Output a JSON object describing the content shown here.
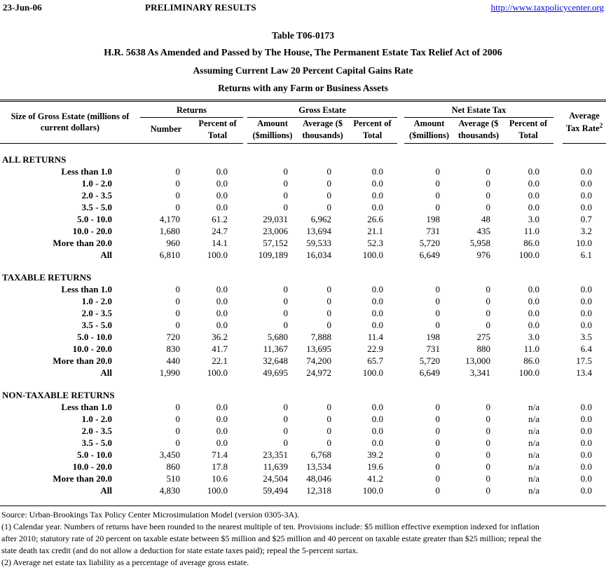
{
  "page_header": {
    "date": "23-Jun-06",
    "status": "PRELIMINARY RESULTS",
    "link": "http://www.taxpolicycenter.org"
  },
  "title": {
    "table_number": "Table T06-0173",
    "line2": "H.R. 5638 As Amended and Passed by The House, The Permanent Estate Tax Relief Act of 2006",
    "line3": "Assuming Current Law 20 Percent Capital Gains Rate",
    "line4": "Returns with any Farm or Business Assets"
  },
  "table": {
    "row_label_header": "Size of Gross Estate (millions of current dollars)",
    "groups": [
      {
        "label": "Returns",
        "cols": [
          "Number",
          "Percent of Total"
        ]
      },
      {
        "label": "Gross Estate",
        "cols": [
          "Amount ($millions)",
          "Average ($ thousands)",
          "Percent of Total"
        ]
      },
      {
        "label": "Net Estate Tax",
        "cols": [
          "Amount ($millions)",
          "Average ($ thousands)",
          "Percent of Total"
        ]
      }
    ],
    "avg_tax_rate": {
      "line1": "Average",
      "line2": "Tax Rate",
      "sup": "2"
    },
    "sections": [
      {
        "name": "ALL RETURNS",
        "rows": [
          {
            "label": "Less than 1.0",
            "values": [
              "0",
              "0.0",
              "0",
              "0",
              "0.0",
              "0",
              "0",
              "0.0",
              "0.0"
            ]
          },
          {
            "label": "1.0 - 2.0",
            "values": [
              "0",
              "0.0",
              "0",
              "0",
              "0.0",
              "0",
              "0",
              "0.0",
              "0.0"
            ]
          },
          {
            "label": "2.0 - 3.5",
            "values": [
              "0",
              "0.0",
              "0",
              "0",
              "0.0",
              "0",
              "0",
              "0.0",
              "0.0"
            ]
          },
          {
            "label": "3.5 - 5.0",
            "values": [
              "0",
              "0.0",
              "0",
              "0",
              "0.0",
              "0",
              "0",
              "0.0",
              "0.0"
            ]
          },
          {
            "label": "5.0 - 10.0",
            "values": [
              "4,170",
              "61.2",
              "29,031",
              "6,962",
              "26.6",
              "198",
              "48",
              "3.0",
              "0.7"
            ]
          },
          {
            "label": "10.0 - 20.0",
            "values": [
              "1,680",
              "24.7",
              "23,006",
              "13,694",
              "21.1",
              "731",
              "435",
              "11.0",
              "3.2"
            ]
          },
          {
            "label": "More than 20.0",
            "values": [
              "960",
              "14.1",
              "57,152",
              "59,533",
              "52.3",
              "5,720",
              "5,958",
              "86.0",
              "10.0"
            ]
          },
          {
            "label": "All",
            "values": [
              "6,810",
              "100.0",
              "109,189",
              "16,034",
              "100.0",
              "6,649",
              "976",
              "100.0",
              "6.1"
            ]
          }
        ]
      },
      {
        "name": "TAXABLE RETURNS",
        "rows": [
          {
            "label": "Less than 1.0",
            "values": [
              "0",
              "0.0",
              "0",
              "0",
              "0.0",
              "0",
              "0",
              "0.0",
              "0.0"
            ]
          },
          {
            "label": "1.0 - 2.0",
            "values": [
              "0",
              "0.0",
              "0",
              "0",
              "0.0",
              "0",
              "0",
              "0.0",
              "0.0"
            ]
          },
          {
            "label": "2.0 - 3.5",
            "values": [
              "0",
              "0.0",
              "0",
              "0",
              "0.0",
              "0",
              "0",
              "0.0",
              "0.0"
            ]
          },
          {
            "label": "3.5 - 5.0",
            "values": [
              "0",
              "0.0",
              "0",
              "0",
              "0.0",
              "0",
              "0",
              "0.0",
              "0.0"
            ]
          },
          {
            "label": "5.0 - 10.0",
            "values": [
              "720",
              "36.2",
              "5,680",
              "7,888",
              "11.4",
              "198",
              "275",
              "3.0",
              "3.5"
            ]
          },
          {
            "label": "10.0 - 20.0",
            "values": [
              "830",
              "41.7",
              "11,367",
              "13,695",
              "22.9",
              "731",
              "880",
              "11.0",
              "6.4"
            ]
          },
          {
            "label": "More than 20.0",
            "values": [
              "440",
              "22.1",
              "32,648",
              "74,200",
              "65.7",
              "5,720",
              "13,000",
              "86.0",
              "17.5"
            ]
          },
          {
            "label": "All",
            "values": [
              "1,990",
              "100.0",
              "49,695",
              "24,972",
              "100.0",
              "6,649",
              "3,341",
              "100.0",
              "13.4"
            ]
          }
        ]
      },
      {
        "name": "NON-TAXABLE RETURNS",
        "rows": [
          {
            "label": "Less than 1.0",
            "values": [
              "0",
              "0.0",
              "0",
              "0",
              "0.0",
              "0",
              "0",
              "n/a",
              "0.0"
            ]
          },
          {
            "label": "1.0 - 2.0",
            "values": [
              "0",
              "0.0",
              "0",
              "0",
              "0.0",
              "0",
              "0",
              "n/a",
              "0.0"
            ]
          },
          {
            "label": "2.0 - 3.5",
            "values": [
              "0",
              "0.0",
              "0",
              "0",
              "0.0",
              "0",
              "0",
              "n/a",
              "0.0"
            ]
          },
          {
            "label": "3.5 - 5.0",
            "values": [
              "0",
              "0.0",
              "0",
              "0",
              "0.0",
              "0",
              "0",
              "n/a",
              "0.0"
            ]
          },
          {
            "label": "5.0 - 10.0",
            "values": [
              "3,450",
              "71.4",
              "23,351",
              "6,768",
              "39.2",
              "0",
              "0",
              "n/a",
              "0.0"
            ]
          },
          {
            "label": "10.0 - 20.0",
            "values": [
              "860",
              "17.8",
              "11,639",
              "13,534",
              "19.6",
              "0",
              "0",
              "n/a",
              "0.0"
            ]
          },
          {
            "label": "More than 20.0",
            "values": [
              "510",
              "10.6",
              "24,504",
              "48,046",
              "41.2",
              "0",
              "0",
              "n/a",
              "0.0"
            ]
          },
          {
            "label": "All",
            "values": [
              "4,830",
              "100.0",
              "59,494",
              "12,318",
              "100.0",
              "0",
              "0",
              "n/a",
              "0.0"
            ]
          }
        ]
      }
    ]
  },
  "footnotes": {
    "source": "Source: Urban-Brookings Tax Policy Center Microsimulation Model (version 0305-3A).",
    "note1_line1": "(1) Calendar year. Numbers of returns have been rounded to the nearest multiple of ten. Provisions include: $5 million effective exemption indexed for inflation",
    "note1_line2": "after 2010;  statutory rate of 20 percent on taxable estate between $5 million and $25 million and 40 percent on taxable estate greater than $25 million; repeal the",
    "note1_line3": "state death tax credit (and do not allow a deduction for state estate taxes paid); repeal the 5-percent surtax.",
    "note2": "(2) Average net estate tax liability as a percentage of average gross estate."
  }
}
